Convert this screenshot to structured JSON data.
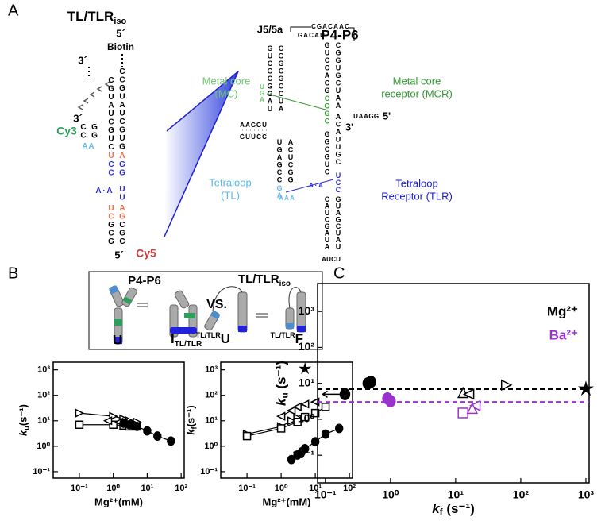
{
  "panel_labels": [
    "A",
    "B",
    "C"
  ],
  "panel_a": {
    "tl_tlr": {
      "title": "TL/TLR",
      "title_sub": "iso",
      "five_prime_top": "5´",
      "biotin": "Biotin",
      "three_prime_top": "3´",
      "three_prime_cy3": "3´",
      "cy3": "Cy3",
      "five_prime_bottom": "5´",
      "cy5": "Cy5",
      "strands": [
        {
          "text": "CGUAUCGUC",
          "color": "#000000"
        },
        {
          "text": "U",
          "color": "#e8704a"
        },
        {
          "text": "CC",
          "color": "#2a2ad0"
        },
        {
          "text": "A·A",
          "color": "#2a2ad0"
        },
        {
          "text": "UC",
          "color": "#e8704a"
        },
        {
          "text": "GCG",
          "color": "#000000"
        },
        {
          "text": "CCGUAUCGUG",
          "color": "#000000"
        },
        {
          "text": "A",
          "color": "#e8704a"
        },
        {
          "text": "GG",
          "color": "#2a2ad0"
        },
        {
          "text": "UU",
          "color": "#2a2ad0"
        },
        {
          "text": "AG",
          "color": "#e8704a"
        },
        {
          "text": "CGC",
          "color": "#000000"
        },
        {
          "text": "CC",
          "color": "#000000"
        },
        {
          "text": "GG",
          "color": "#000000"
        },
        {
          "text": "AA",
          "color": "#6ab8e8"
        }
      ]
    },
    "p4p6": {
      "title": "P4-P6",
      "j5_5a": "J5/5a",
      "mc": [
        "Metal core",
        "(MC)"
      ],
      "mcr": [
        "Metal core",
        "receptor (MCR)"
      ],
      "tl": [
        "Tetraloop",
        "(TL)"
      ],
      "tlr": [
        "Tetraloop",
        "Receptor (TLR)"
      ],
      "five_prime": "5'",
      "three_prime": "3'",
      "strands": [
        {
          "text": "CGACAAC",
          "color": "#000000"
        },
        {
          "text": "GACAU",
          "color": "#000000"
        },
        {
          "text": "GUCGCGGAU",
          "color": "#000000"
        },
        {
          "text": "CGGCGCCUA",
          "color": "#000000"
        },
        {
          "text": "UGA",
          "color": "#6cc86c"
        },
        {
          "text": "GUCCACG",
          "color": "#000000"
        },
        {
          "text": "CGGUGCUAA",
          "color": "#000000"
        },
        {
          "text": "CGGC",
          "color": "#2f9a2f"
        },
        {
          "text": "UAAGG",
          "color": "#000000"
        },
        {
          "text": "AAGGU",
          "color": "#000000"
        },
        {
          "text": "GUUCC",
          "color": "#000000"
        },
        {
          "text": "UGAGCC",
          "color": "#000000"
        },
        {
          "text": "ACUCGG",
          "color": "#000000"
        },
        {
          "text": "GA",
          "color": "#6ab8e8"
        },
        {
          "text": "AAA",
          "color": "#6ab8e8"
        },
        {
          "text": "GGCGUC",
          "color": "#000000"
        },
        {
          "text": "ACAUUGC",
          "color": "#000000"
        },
        {
          "text": "UCC",
          "color": "#2a2ad0"
        },
        {
          "text": "A·A",
          "color": "#2a2ad0"
        },
        {
          "text": "CAUCGAUA",
          "color": "#000000"
        },
        {
          "text": "GUAGCUAU",
          "color": "#000000"
        },
        {
          "text": "AUCU",
          "color": "#000000"
        }
      ]
    }
  },
  "panel_b": {
    "p4p6": "P4-P6",
    "vs": "VS.",
    "tltlr": "TL/TLR",
    "tltlr_sub": "iso",
    "state_u": "U",
    "state_i": "I",
    "state_i_sub": "TL/TLR",
    "state_u2_pre": "TL/TLR",
    "state_u2": "U",
    "state_f_pre": "TL/TLR",
    "state_f": "F"
  },
  "chart_data": [
    {
      "type": "scatter",
      "log_x": true,
      "log_y": true,
      "xlim": [
        0.017,
        123
      ],
      "ylim": [
        0.056,
        2000
      ],
      "xticks": [
        {
          "value": 0.1,
          "label": "10⁻¹"
        },
        {
          "value": 1,
          "label": "10⁰"
        },
        {
          "value": 10,
          "label": "10¹"
        },
        {
          "value": 100,
          "label": "10²"
        }
      ],
      "yticks": [
        {
          "value": 0.1,
          "label": "10⁻¹"
        },
        {
          "value": 1,
          "label": "10⁰"
        },
        {
          "value": 10,
          "label": "10¹"
        },
        {
          "value": 100,
          "label": "10²"
        },
        {
          "value": 1000,
          "label": "10³"
        }
      ],
      "x_label": "Mg²⁺(mM)",
      "y_label": {
        "symbol": "k",
        "subscript": "u",
        "unit": "(s⁻¹)"
      },
      "series": [
        {
          "marker": "triangle-right",
          "filled": false,
          "line": true,
          "color": "#000000",
          "x": [
            0.1,
            1,
            2,
            3,
            5
          ],
          "values": [
            20,
            15,
            12,
            10,
            9
          ]
        },
        {
          "marker": "square",
          "filled": false,
          "line": true,
          "color": "#000000",
          "x": [
            0.1,
            1,
            2,
            3,
            5
          ],
          "values": [
            7,
            7,
            6.5,
            6,
            6
          ]
        },
        {
          "marker": "triangle-left",
          "filled": false,
          "line": true,
          "color": "#000000",
          "x": [
            0.7,
            1.5,
            2,
            3
          ],
          "values": [
            10,
            9,
            8,
            7
          ]
        },
        {
          "marker": "circle",
          "filled": true,
          "line": true,
          "color": "#000000",
          "x": [
            2,
            3,
            4,
            5,
            10,
            20,
            50
          ],
          "values": [
            8,
            7,
            6.5,
            6,
            4,
            2.5,
            1.6
          ]
        }
      ]
    },
    {
      "type": "scatter",
      "log_x": true,
      "log_y": true,
      "xlim": [
        0.017,
        123
      ],
      "ylim": [
        0.056,
        2000
      ],
      "xticks": [
        {
          "value": 0.1,
          "label": "10⁻¹"
        },
        {
          "value": 1,
          "label": "10⁰"
        },
        {
          "value": 10,
          "label": "10¹"
        },
        {
          "value": 100,
          "label": "10²"
        }
      ],
      "yticks": [
        {
          "value": 0.1,
          "label": "10⁻¹"
        },
        {
          "value": 1,
          "label": "10⁰"
        },
        {
          "value": 10,
          "label": "10¹"
        },
        {
          "value": 100,
          "label": "10²"
        },
        {
          "value": 1000,
          "label": "10³"
        }
      ],
      "x_label": "Mg²⁺(mM)",
      "y_label": {
        "symbol": "k",
        "subscript": "f",
        "unit": "(s⁻¹)"
      },
      "series": [
        {
          "marker": "circle",
          "filled": true,
          "line": true,
          "color": "#000000",
          "x": [
            2,
            3,
            4,
            5,
            10,
            20,
            50
          ],
          "values": [
            0.3,
            0.45,
            0.6,
            0.8,
            1.5,
            3,
            5
          ]
        },
        {
          "marker": "triangle-right",
          "filled": false,
          "line": true,
          "color": "#000000",
          "x": [
            0.1,
            1,
            2,
            3
          ],
          "values": [
            3,
            6,
            10,
            13
          ]
        },
        {
          "marker": "square",
          "filled": false,
          "line": true,
          "color": "#000000",
          "x": [
            0.1,
            1,
            3,
            5,
            10,
            20
          ],
          "values": [
            2.5,
            5,
            9,
            14,
            20,
            35
          ]
        },
        {
          "marker": "triangle-left",
          "filled": false,
          "line": true,
          "color": "#000000",
          "x": [
            1,
            2,
            3,
            5,
            10
          ],
          "values": [
            15,
            25,
            35,
            45,
            55
          ]
        },
        {
          "marker": "star",
          "filled": true,
          "line": false,
          "color": "#000000",
          "x": [
            5
          ],
          "values": [
            1100
          ]
        }
      ]
    },
    {
      "type": "scatter",
      "log_x": true,
      "log_y": true,
      "xlim": [
        0.076,
        1120
      ],
      "ylim": [
        0.017,
        6000
      ],
      "xticks": [
        {
          "value": 0.1,
          "label": "10⁻¹"
        },
        {
          "value": 1,
          "label": "10⁰"
        },
        {
          "value": 10,
          "label": "10¹"
        },
        {
          "value": 100,
          "label": "10²"
        },
        {
          "value": 1000,
          "label": "10³"
        }
      ],
      "yticks": [
        {
          "value": 0.1,
          "label": "10⁻¹"
        },
        {
          "value": 1,
          "label": "10⁰"
        },
        {
          "value": 10,
          "label": "10¹"
        },
        {
          "value": 100,
          "label": "10²"
        },
        {
          "value": 1000,
          "label": "10³"
        }
      ],
      "x_label": {
        "symbol": "k",
        "subscript": "f",
        "unit": " (s⁻¹)"
      },
      "y_label": {
        "symbol": "k",
        "subscript": "u",
        "unit": " (s⁻¹)"
      },
      "legend_corner": "upper-right",
      "legend": [
        {
          "name": "Mg²⁺",
          "color": "#000000"
        },
        {
          "name": "Ba²⁺",
          "color": "#9933cc"
        }
      ],
      "hlines": [
        {
          "value": 7,
          "color": "#000000"
        },
        {
          "value": 3,
          "color": "#9933cc"
        }
      ],
      "series": [
        {
          "marker": "circle",
          "filled": true,
          "line": false,
          "arrow": "left",
          "color": "#000000",
          "x": [
            0.2
          ],
          "values": [
            5
          ]
        },
        {
          "marker": "circle",
          "filled": true,
          "line": false,
          "color": "#000000",
          "x": [
            0.45,
            0.5
          ],
          "values": [
            10,
            11
          ]
        },
        {
          "marker": "triangle-up",
          "filled": false,
          "line": false,
          "color": "#000000",
          "x": [
            13
          ],
          "values": [
            5.5
          ]
        },
        {
          "marker": "triangle-left",
          "filled": false,
          "line": false,
          "color": "#000000",
          "x": [
            16
          ],
          "values": [
            5
          ]
        },
        {
          "marker": "triangle-right",
          "filled": false,
          "line": false,
          "color": "#000000",
          "x": [
            60
          ],
          "values": [
            9
          ]
        },
        {
          "marker": "star",
          "filled": true,
          "line": false,
          "color": "#000000",
          "x": [
            1000
          ],
          "values": [
            7
          ]
        },
        {
          "marker": "circle",
          "filled": true,
          "line": false,
          "color": "#9933cc",
          "x": [
            0.9,
            1.0
          ],
          "values": [
            3.8,
            3.2
          ]
        },
        {
          "marker": "square",
          "filled": false,
          "line": false,
          "color": "#9933cc",
          "x": [
            13
          ],
          "values": [
            1.5
          ]
        },
        {
          "marker": "triangle-left",
          "filled": false,
          "line": false,
          "color": "#9933cc",
          "x": [
            20
          ],
          "values": [
            2.4
          ]
        },
        {
          "marker": "triangle-up",
          "filled": false,
          "line": false,
          "color": "#9933cc",
          "x": [
            18
          ],
          "values": [
            2
          ]
        }
      ]
    }
  ]
}
